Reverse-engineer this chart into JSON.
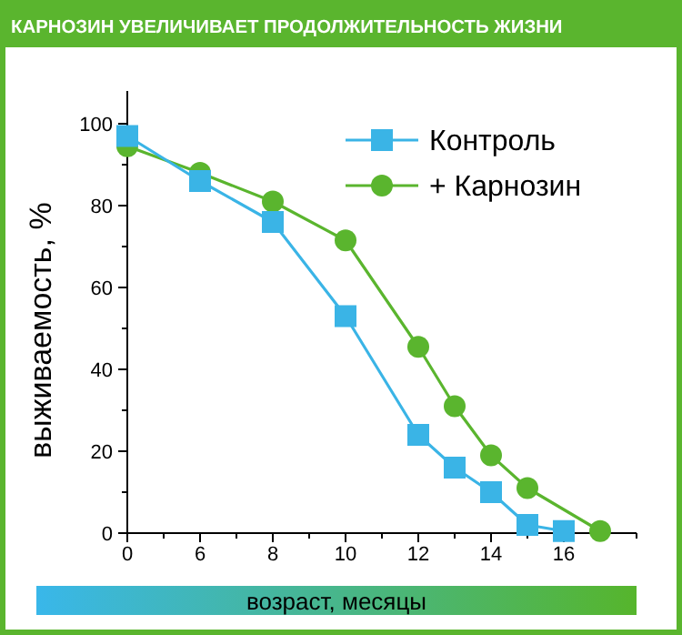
{
  "chart_data": {
    "type": "line",
    "title": "КАРНОЗИН УВЕЛИЧИВАЕТ ПРОДОЛЖИТЕЛЬНОСТЬ ЖИЗНИ",
    "xlabel": "возраст, месяцы",
    "ylabel": "выживаемость, %",
    "categories": [
      "0",
      null,
      "6",
      null,
      "8",
      null,
      "10",
      null,
      "12",
      null,
      "14",
      null,
      "16",
      null,
      null
    ],
    "series": [
      {
        "name": "Контроль",
        "color": "#3ab4e6",
        "marker": "square",
        "values": [
          97,
          null,
          86,
          null,
          76,
          null,
          53,
          null,
          24,
          16,
          10,
          2,
          0.5,
          null,
          null
        ]
      },
      {
        "name": "+ Карнозин",
        "color": "#5ab52e",
        "marker": "circle",
        "values": [
          94.5,
          null,
          88,
          null,
          81,
          null,
          71.5,
          null,
          45.5,
          31,
          19,
          11,
          null,
          0.5,
          null
        ]
      }
    ],
    "ylim": [
      0,
      108
    ],
    "yticks": [
      0,
      {
        "value": 10,
        "label": null
      },
      20,
      {
        "value": 30,
        "label": null
      },
      40,
      {
        "value": 50,
        "label": null
      },
      60,
      {
        "value": 70,
        "label": null
      },
      80,
      {
        "value": 90,
        "label": null
      },
      100
    ],
    "legend": "top right",
    "grid": false
  }
}
